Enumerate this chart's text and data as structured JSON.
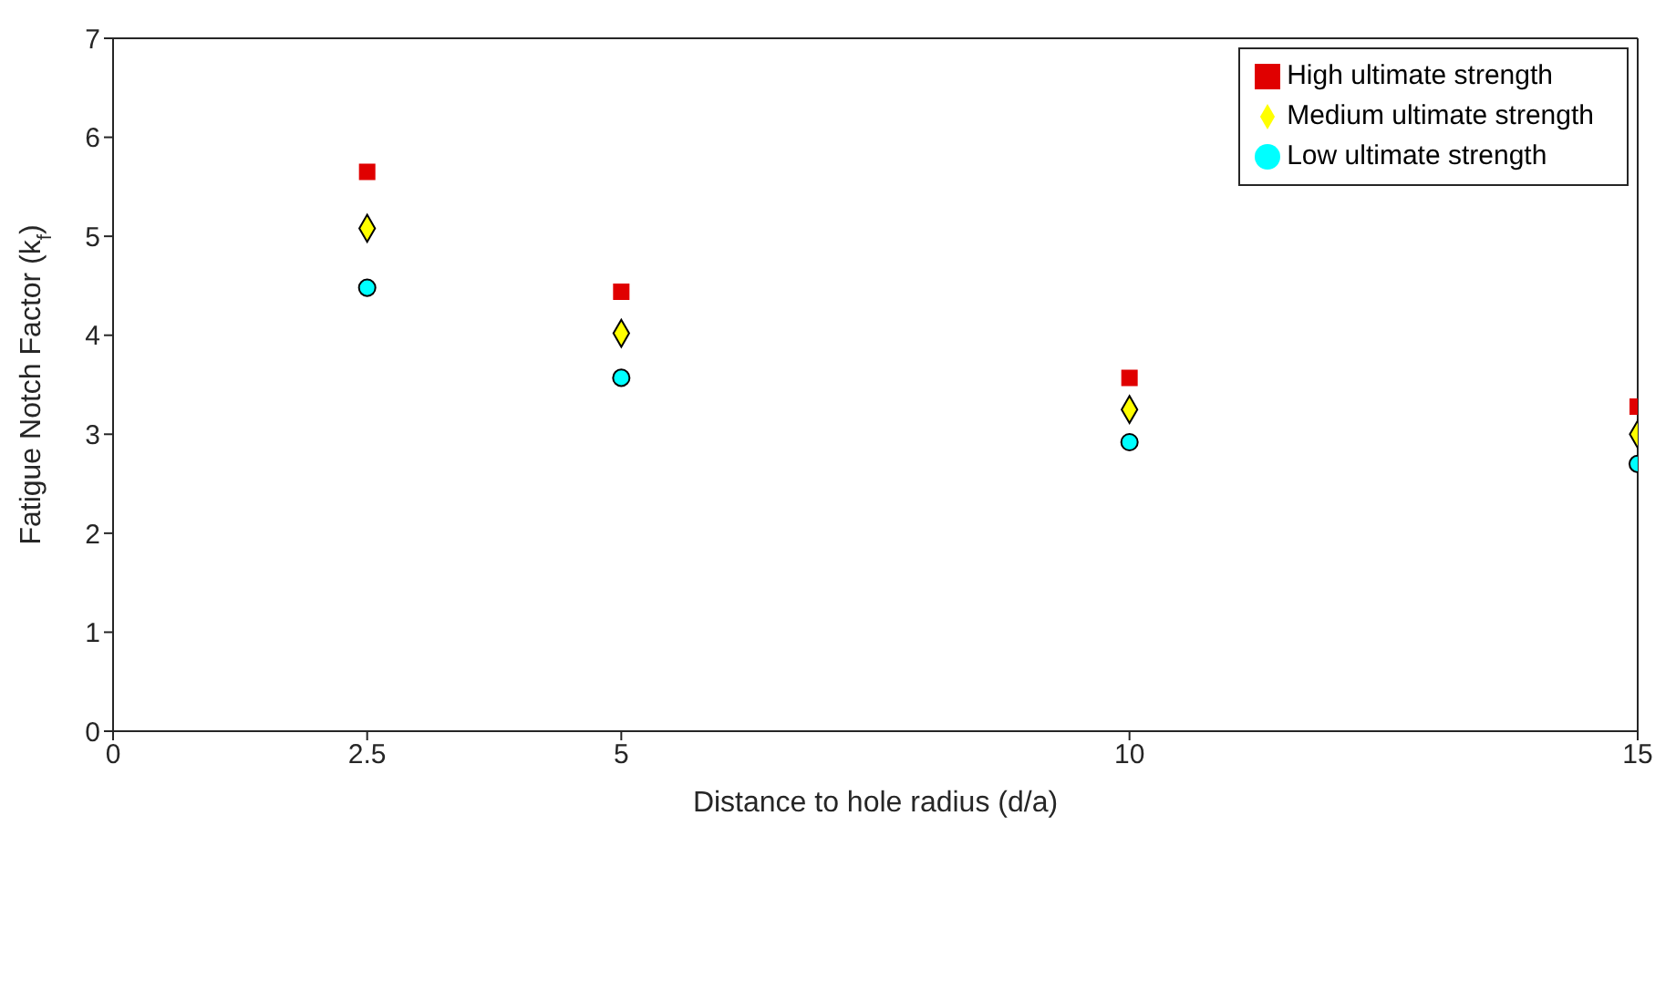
{
  "chart_data": {
    "type": "scatter",
    "xlabel": "Distance to hole radius (d/a)",
    "ylabel": "Fatigue Notch Factor (k$_{f}$)",
    "x": [
      2.5,
      5,
      10,
      15
    ],
    "series": [
      {
        "name": "High ultimate strength",
        "color": "#e00000",
        "marker": "square",
        "values": [
          5.65,
          4.44,
          3.57,
          3.28
        ]
      },
      {
        "name": "Medium ultimate strength",
        "color": "#ffff00",
        "marker": "diamond",
        "values": [
          5.08,
          4.02,
          3.25,
          3.0
        ]
      },
      {
        "name": "Low ultimate strength",
        "color": "#00ffff",
        "marker": "circle",
        "values": [
          4.48,
          3.57,
          2.92,
          2.7
        ]
      }
    ],
    "xlim": [
      0,
      15
    ],
    "xticks": [
      0,
      2.5,
      5,
      10,
      15
    ],
    "ylim": [
      0,
      7
    ],
    "yticks": [
      0,
      1,
      2,
      3,
      4,
      5,
      6,
      7
    ],
    "legend": "top right"
  }
}
